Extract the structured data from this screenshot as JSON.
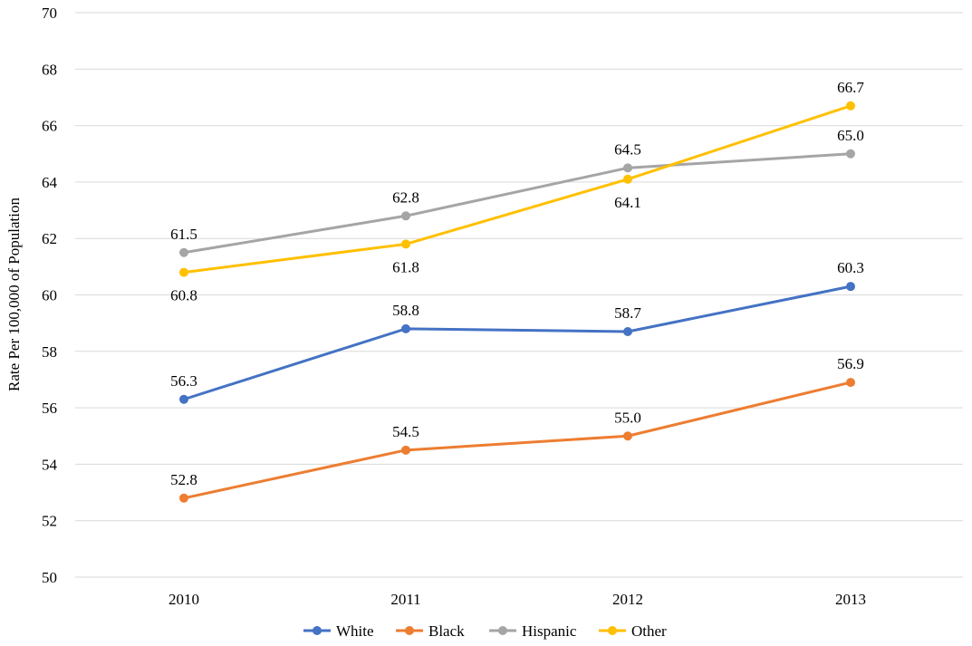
{
  "chart_data": {
    "type": "line",
    "title": "",
    "xlabel": "",
    "ylabel": "Rate Per 100,000 of Population",
    "categories": [
      "2010",
      "2011",
      "2012",
      "2013"
    ],
    "ylim": [
      50,
      70
    ],
    "y_ticks": [
      50,
      52,
      54,
      56,
      58,
      60,
      62,
      64,
      66,
      68,
      70
    ],
    "grid": true,
    "legend_position": "bottom",
    "series": [
      {
        "name": "White",
        "color": "#4472c4",
        "values": [
          56.3,
          58.8,
          58.7,
          60.3
        ],
        "labels": [
          "56.3",
          "58.8",
          "58.7",
          "60.3"
        ],
        "label_pos": [
          "above",
          "above",
          "above",
          "above"
        ]
      },
      {
        "name": "Black",
        "color": "#ed7d31",
        "values": [
          52.8,
          54.5,
          55.0,
          56.9
        ],
        "labels": [
          "52.8",
          "54.5",
          "55.0",
          "56.9"
        ],
        "label_pos": [
          "above",
          "above",
          "above",
          "above"
        ]
      },
      {
        "name": "Hispanic",
        "color": "#a5a5a5",
        "values": [
          61.5,
          62.8,
          64.5,
          65.0
        ],
        "labels": [
          "61.5",
          "62.8",
          "64.5",
          "65.0"
        ],
        "label_pos": [
          "above",
          "above",
          "above",
          "above"
        ]
      },
      {
        "name": "Other",
        "color": "#ffc000",
        "values": [
          60.8,
          61.8,
          64.1,
          66.7
        ],
        "labels": [
          "60.8",
          "61.8",
          "64.1",
          "66.7"
        ],
        "label_pos": [
          "below",
          "below",
          "below",
          "above"
        ]
      }
    ]
  }
}
